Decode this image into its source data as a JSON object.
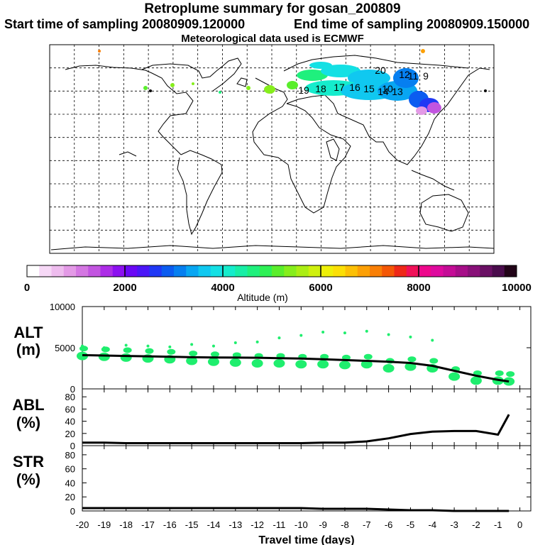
{
  "title": "Retroplume summary for gosan_200809",
  "start_label": "Start time of sampling 20080909.120000",
  "end_label": "End time of sampling 20080909.150000",
  "met_label": "Meteorological data used is ECMWF",
  "colorbar": {
    "label": "Altitude (m)",
    "ticks": [
      "0",
      "2000",
      "4000",
      "6000",
      "8000",
      "10000"
    ],
    "colors": [
      "#ffffff",
      "#f6d8f6",
      "#eebcee",
      "#e39ae6",
      "#d477e2",
      "#c255e0",
      "#ad2de7",
      "#8c10f0",
      "#6a08f5",
      "#4b16f7",
      "#2038f5",
      "#0b5cf0",
      "#067ff0",
      "#08a6f2",
      "#10c8f0",
      "#14e0e4",
      "#15eccc",
      "#18eea6",
      "#1ff07d",
      "#2ef056",
      "#5aee2c",
      "#86ee1c",
      "#abee14",
      "#cff00e",
      "#eef008",
      "#fbdf06",
      "#fcc006",
      "#fca006",
      "#f97f06",
      "#f45706",
      "#ee2818",
      "#f01058",
      "#ee088c",
      "#de0a9e",
      "#c40c96",
      "#a60e88",
      "#881078",
      "#6a1064",
      "#4a0c4c",
      "#220418"
    ]
  },
  "chart_data": [
    {
      "type": "line",
      "panel": "ALT",
      "ylabel": "ALT (m)",
      "yticks": [
        "10000",
        "5000",
        "0"
      ],
      "ylim": [
        0,
        10000
      ],
      "x": [
        -20,
        -19,
        -18,
        -17,
        -16,
        -15,
        -14,
        -13,
        -12,
        -11,
        -10,
        -9,
        -8,
        -7,
        -6,
        -5,
        -4,
        -3,
        -2,
        -1,
        -0.5
      ],
      "values": [
        4100,
        4050,
        4000,
        3950,
        3900,
        3850,
        3820,
        3800,
        3780,
        3730,
        3680,
        3600,
        3500,
        3400,
        3300,
        3150,
        2800,
        2200,
        1600,
        1100,
        900
      ],
      "scatter_x": [
        -20,
        -19,
        -18,
        -17,
        -16,
        -15,
        -14,
        -13,
        -12,
        -11,
        -10,
        -9,
        -8,
        -7,
        -6,
        -5,
        -4,
        -3,
        -2,
        -1,
        -0.5
      ],
      "scatter_y": [
        4000,
        3900,
        3800,
        3700,
        3600,
        3400,
        3300,
        3200,
        3100,
        3100,
        3000,
        3000,
        2900,
        3000,
        2500,
        2700,
        2500,
        1500,
        1000,
        1000,
        900
      ],
      "scatter_high": [
        5200,
        5000,
        5300,
        5200,
        5100,
        5400,
        5200,
        5600,
        5700,
        6200,
        6500,
        6900,
        6800,
        7000,
        6600,
        6300,
        5900,
        null,
        null,
        null,
        null
      ]
    },
    {
      "type": "line",
      "panel": "ABL",
      "ylabel": "ABL (%)",
      "yticks": [
        "80",
        "60",
        "40",
        "20",
        "0"
      ],
      "ylim": [
        0,
        93
      ],
      "x": [
        -20,
        -19,
        -18,
        -17,
        -16,
        -15,
        -14,
        -13,
        -12,
        -11,
        -10,
        -9,
        -8,
        -7,
        -6,
        -5,
        -4,
        -3,
        -2,
        -1,
        -0.5
      ],
      "values": [
        5,
        5,
        4,
        4,
        4,
        4,
        4,
        4,
        4,
        4,
        4,
        5,
        5,
        7,
        12,
        19,
        23,
        24,
        24,
        18,
        51
      ]
    },
    {
      "type": "line",
      "panel": "STR",
      "ylabel": "STR (%)",
      "yticks": [
        "80",
        "60",
        "40",
        "20",
        "0"
      ],
      "ylim": [
        0,
        93
      ],
      "xlabel": "Travel time (days)",
      "xticks": [
        "-20",
        "-19",
        "-18",
        "-17",
        "-16",
        "-15",
        "-14",
        "-13",
        "-12",
        "-11",
        "-10",
        "-9",
        "-8",
        "-7",
        "-6",
        "-5",
        "-4",
        "-3",
        "-2",
        "-1",
        "0"
      ],
      "x": [
        -20,
        -19,
        -18,
        -17,
        -16,
        -15,
        -14,
        -13,
        -12,
        -11,
        -10,
        -9,
        -8,
        -7,
        -6,
        -5,
        -4,
        -3,
        -2,
        -1,
        -0.5
      ],
      "values": [
        4,
        4,
        4,
        4,
        4,
        4,
        4,
        4,
        4,
        4,
        4,
        3,
        3,
        3,
        2,
        1,
        1,
        0,
        0,
        0,
        0
      ]
    }
  ],
  "map": {
    "plume_day_labels": [
      "20",
      "19",
      "18",
      "17",
      "16",
      "15",
      "14",
      "13",
      "12",
      "11",
      "10",
      "9"
    ]
  }
}
